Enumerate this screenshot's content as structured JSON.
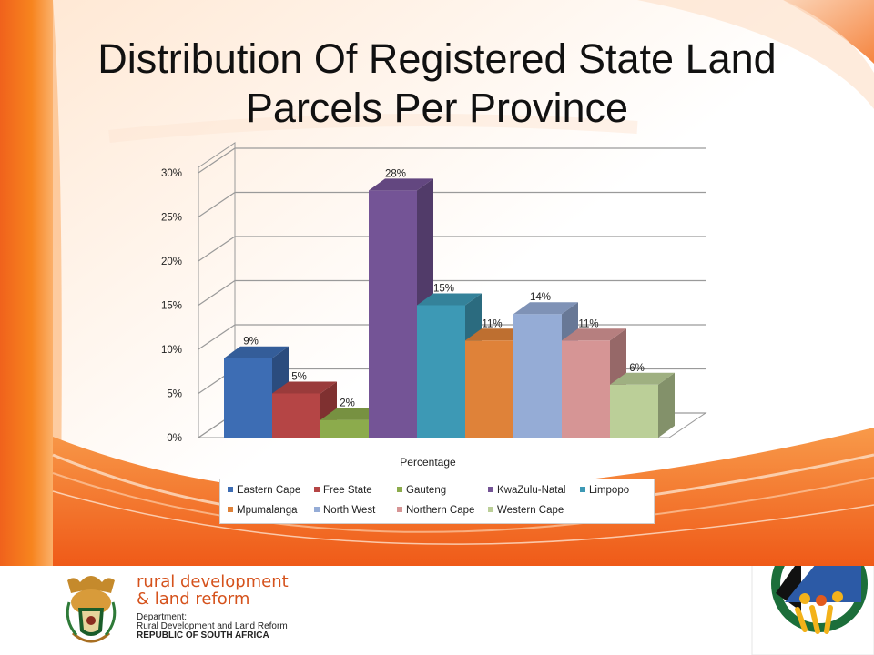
{
  "slide": {
    "title_line1": "Distribution Of Registered State Land",
    "title_line2": "Parcels Per Province"
  },
  "chart_data": {
    "type": "bar",
    "categories": [
      "Eastern Cape",
      "Free State",
      "Gauteng",
      "KwaZulu-Natal",
      "Limpopo",
      "Mpumalanga",
      "North West",
      "Northern Cape",
      "Western Cape"
    ],
    "values": [
      9,
      5,
      2,
      28,
      15,
      11,
      14,
      11,
      6
    ],
    "data_labels": [
      "9%",
      "5%",
      "2%",
      "28%",
      "15%",
      "11%",
      "14%",
      "11%",
      "6%"
    ],
    "colors": [
      "#3d6db4",
      "#b54545",
      "#8cab4c",
      "#745496",
      "#3d99b5",
      "#df8239",
      "#95acd6",
      "#d69595",
      "#bbcf98"
    ],
    "xlabel": "Percentage",
    "ylabel": "",
    "ylim": [
      0,
      30
    ],
    "yticks": [
      "0%",
      "5%",
      "10%",
      "15%",
      "20%",
      "25%",
      "30%"
    ],
    "grid": true,
    "legend_position": "bottom"
  },
  "footer": {
    "brand_line1": "rural development",
    "brand_line2": "& land reform",
    "dept_line1": "Department:",
    "dept_line2": "Rural Development and Land Reform",
    "dept_line3": "REPUBLIC OF SOUTH AFRICA"
  },
  "colors": {
    "orange_primary": "#f26522",
    "orange_light": "#fbd0b0"
  }
}
